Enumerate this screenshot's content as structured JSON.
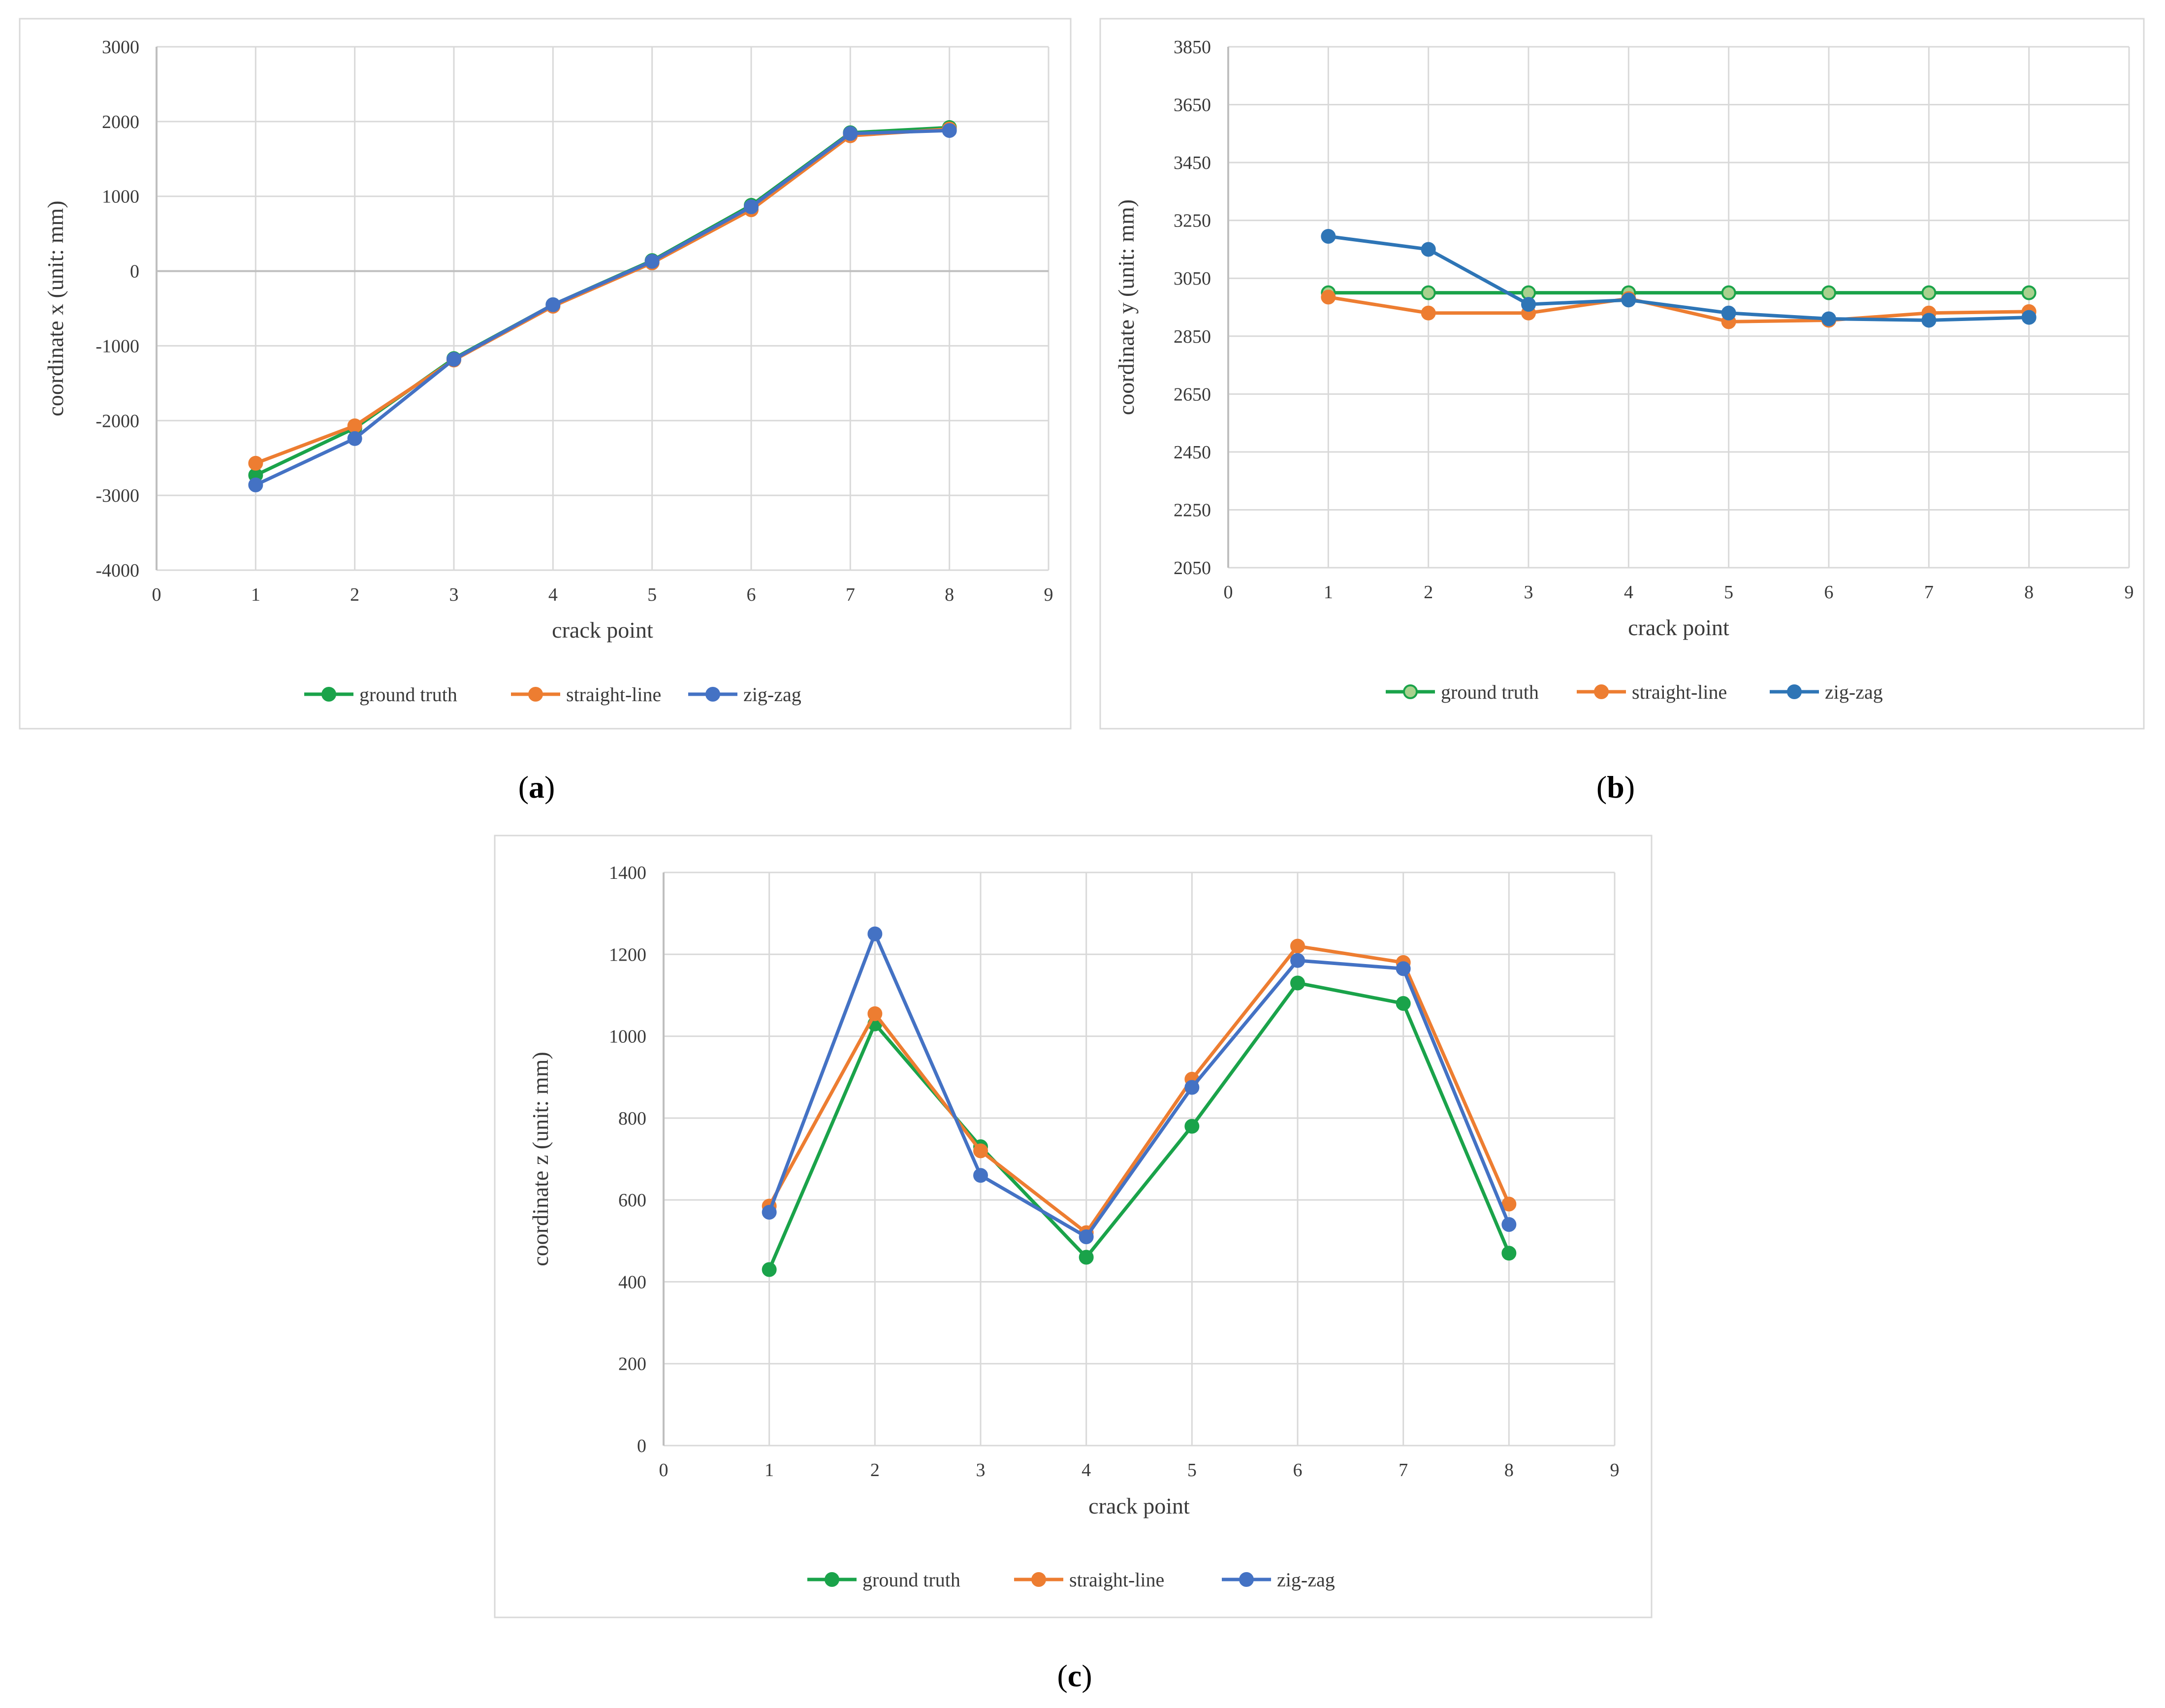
{
  "chart_data": [
    {
      "type": "line",
      "panel_label": "(a)",
      "panel_letter": "a",
      "title": "",
      "xlabel": "crack point",
      "ylabel": "coordinate x (unit: mm)",
      "xlim": [
        0,
        9
      ],
      "xticks": [
        0,
        1,
        2,
        3,
        4,
        5,
        6,
        7,
        8,
        9
      ],
      "ylim": [
        -4000,
        3000
      ],
      "yticks": [
        -4000,
        -3000,
        -2000,
        -1000,
        0,
        1000,
        2000,
        3000
      ],
      "grid": true,
      "legend_position": "bottom",
      "x": [
        1,
        2,
        3,
        4,
        5,
        6,
        7,
        8
      ],
      "series": [
        {
          "name": "ground truth",
          "color": "#1aa34a",
          "values": [
            -2730,
            -2100,
            -1170,
            -450,
            140,
            880,
            1850,
            1920
          ]
        },
        {
          "name": "straight-line",
          "color": "#ed7d31",
          "values": [
            -2570,
            -2070,
            -1190,
            -470,
            110,
            820,
            1810,
            1900
          ]
        },
        {
          "name": "zig-zag",
          "color": "#4472c4",
          "values": [
            -2860,
            -2240,
            -1180,
            -450,
            130,
            860,
            1840,
            1880
          ]
        }
      ]
    },
    {
      "type": "line",
      "panel_label": "(b)",
      "panel_letter": "b",
      "title": "",
      "xlabel": "crack point",
      "ylabel": "coordinate y (unit: mm)",
      "xlim": [
        0,
        9
      ],
      "xticks": [
        0,
        1,
        2,
        3,
        4,
        5,
        6,
        7,
        8,
        9
      ],
      "ylim": [
        2050,
        3850
      ],
      "yticks": [
        2050,
        2250,
        2450,
        2650,
        2850,
        3050,
        3250,
        3450,
        3650,
        3850
      ],
      "grid": true,
      "legend_position": "bottom",
      "x": [
        1,
        2,
        3,
        4,
        5,
        6,
        7,
        8
      ],
      "series": [
        {
          "name": "ground truth",
          "color": "#1aa34a",
          "marker_fill": "#a9d18e",
          "values": [
            3000,
            3000,
            3000,
            3000,
            3000,
            3000,
            3000,
            3000
          ]
        },
        {
          "name": "straight-line",
          "color": "#ed7d31",
          "values": [
            2985,
            2930,
            2930,
            2980,
            2900,
            2905,
            2930,
            2935
          ]
        },
        {
          "name": "zig-zag",
          "color": "#2e75b6",
          "values": [
            3195,
            3150,
            2960,
            2975,
            2930,
            2910,
            2905,
            2915
          ]
        }
      ]
    },
    {
      "type": "line",
      "panel_label": "(c)",
      "panel_letter": "c",
      "title": "",
      "xlabel": "crack point",
      "ylabel": "coordinate z (unit: mm)",
      "xlim": [
        0,
        9
      ],
      "xticks": [
        0,
        1,
        2,
        3,
        4,
        5,
        6,
        7,
        8,
        9
      ],
      "ylim": [
        0,
        1400
      ],
      "yticks": [
        0,
        200,
        400,
        600,
        800,
        1000,
        1200,
        1400
      ],
      "grid": true,
      "legend_position": "bottom",
      "x": [
        1,
        2,
        3,
        4,
        5,
        6,
        7,
        8
      ],
      "series": [
        {
          "name": "ground truth",
          "color": "#1aa34a",
          "values": [
            430,
            1030,
            730,
            460,
            780,
            1130,
            1080,
            470
          ]
        },
        {
          "name": "straight-line",
          "color": "#ed7d31",
          "values": [
            585,
            1055,
            720,
            520,
            895,
            1220,
            1180,
            590
          ]
        },
        {
          "name": "zig-zag",
          "color": "#4472c4",
          "values": [
            570,
            1250,
            660,
            510,
            875,
            1185,
            1165,
            540
          ]
        }
      ]
    }
  ]
}
